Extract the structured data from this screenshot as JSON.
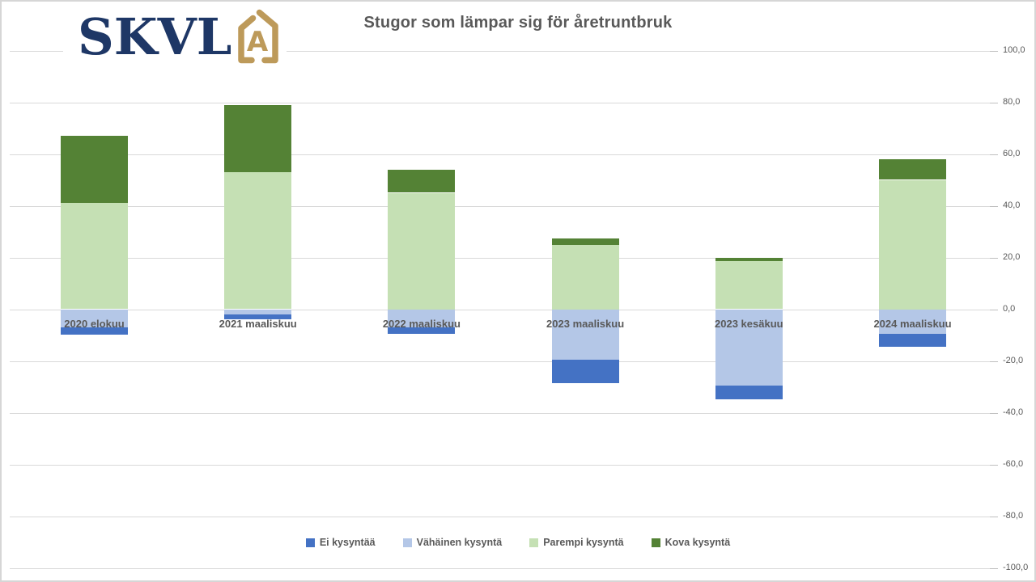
{
  "header": {
    "logo_text": "SKVL",
    "logo_icon": "house-with-letter-a",
    "logo_navy": "#1e3766",
    "logo_gold": "#bd9a5a",
    "title_color": "#595959"
  },
  "chart_data": {
    "type": "bar",
    "stacked": true,
    "title": "Stugor som lämpar sig för åretruntbruk",
    "categories": [
      "2020 elokuu",
      "2021 maaliskuu",
      "2022 maaliskuu",
      "2023 maaliskuu",
      "2023 kesäkuu",
      "2024 maaliskuu"
    ],
    "series": [
      {
        "name": "Ei kysyntää",
        "color": "#4472c4",
        "values": [
          -3,
          -2,
          -2.5,
          -9,
          -5.5,
          -5
        ]
      },
      {
        "name": "Vähäinen kysyntä",
        "color": "#b4c7e7",
        "values": [
          -7,
          -2,
          -7,
          -19.5,
          -29.5,
          -9.5
        ]
      },
      {
        "name": "Parempi kysyntä",
        "color": "#c5e0b4",
        "values": [
          41,
          53,
          45,
          25,
          18.5,
          50
        ]
      },
      {
        "name": "Kova kysyntä",
        "color": "#548235",
        "values": [
          26,
          26,
          9,
          2.5,
          1.5,
          8
        ]
      }
    ],
    "ylim": [
      -100,
      100
    ],
    "ytick_step": 20,
    "ytick_labels": [
      "100,0",
      "80,0",
      "60,0",
      "40,0",
      "20,0",
      "0,0",
      "-20,0",
      "-40,0",
      "-60,0",
      "-80,0",
      "-100,0"
    ],
    "grid": true,
    "legend_position": "bottom",
    "grid_color": "#d9d9d9",
    "tick_color": "#bfbfbf",
    "axis_text_color": "#595959"
  }
}
